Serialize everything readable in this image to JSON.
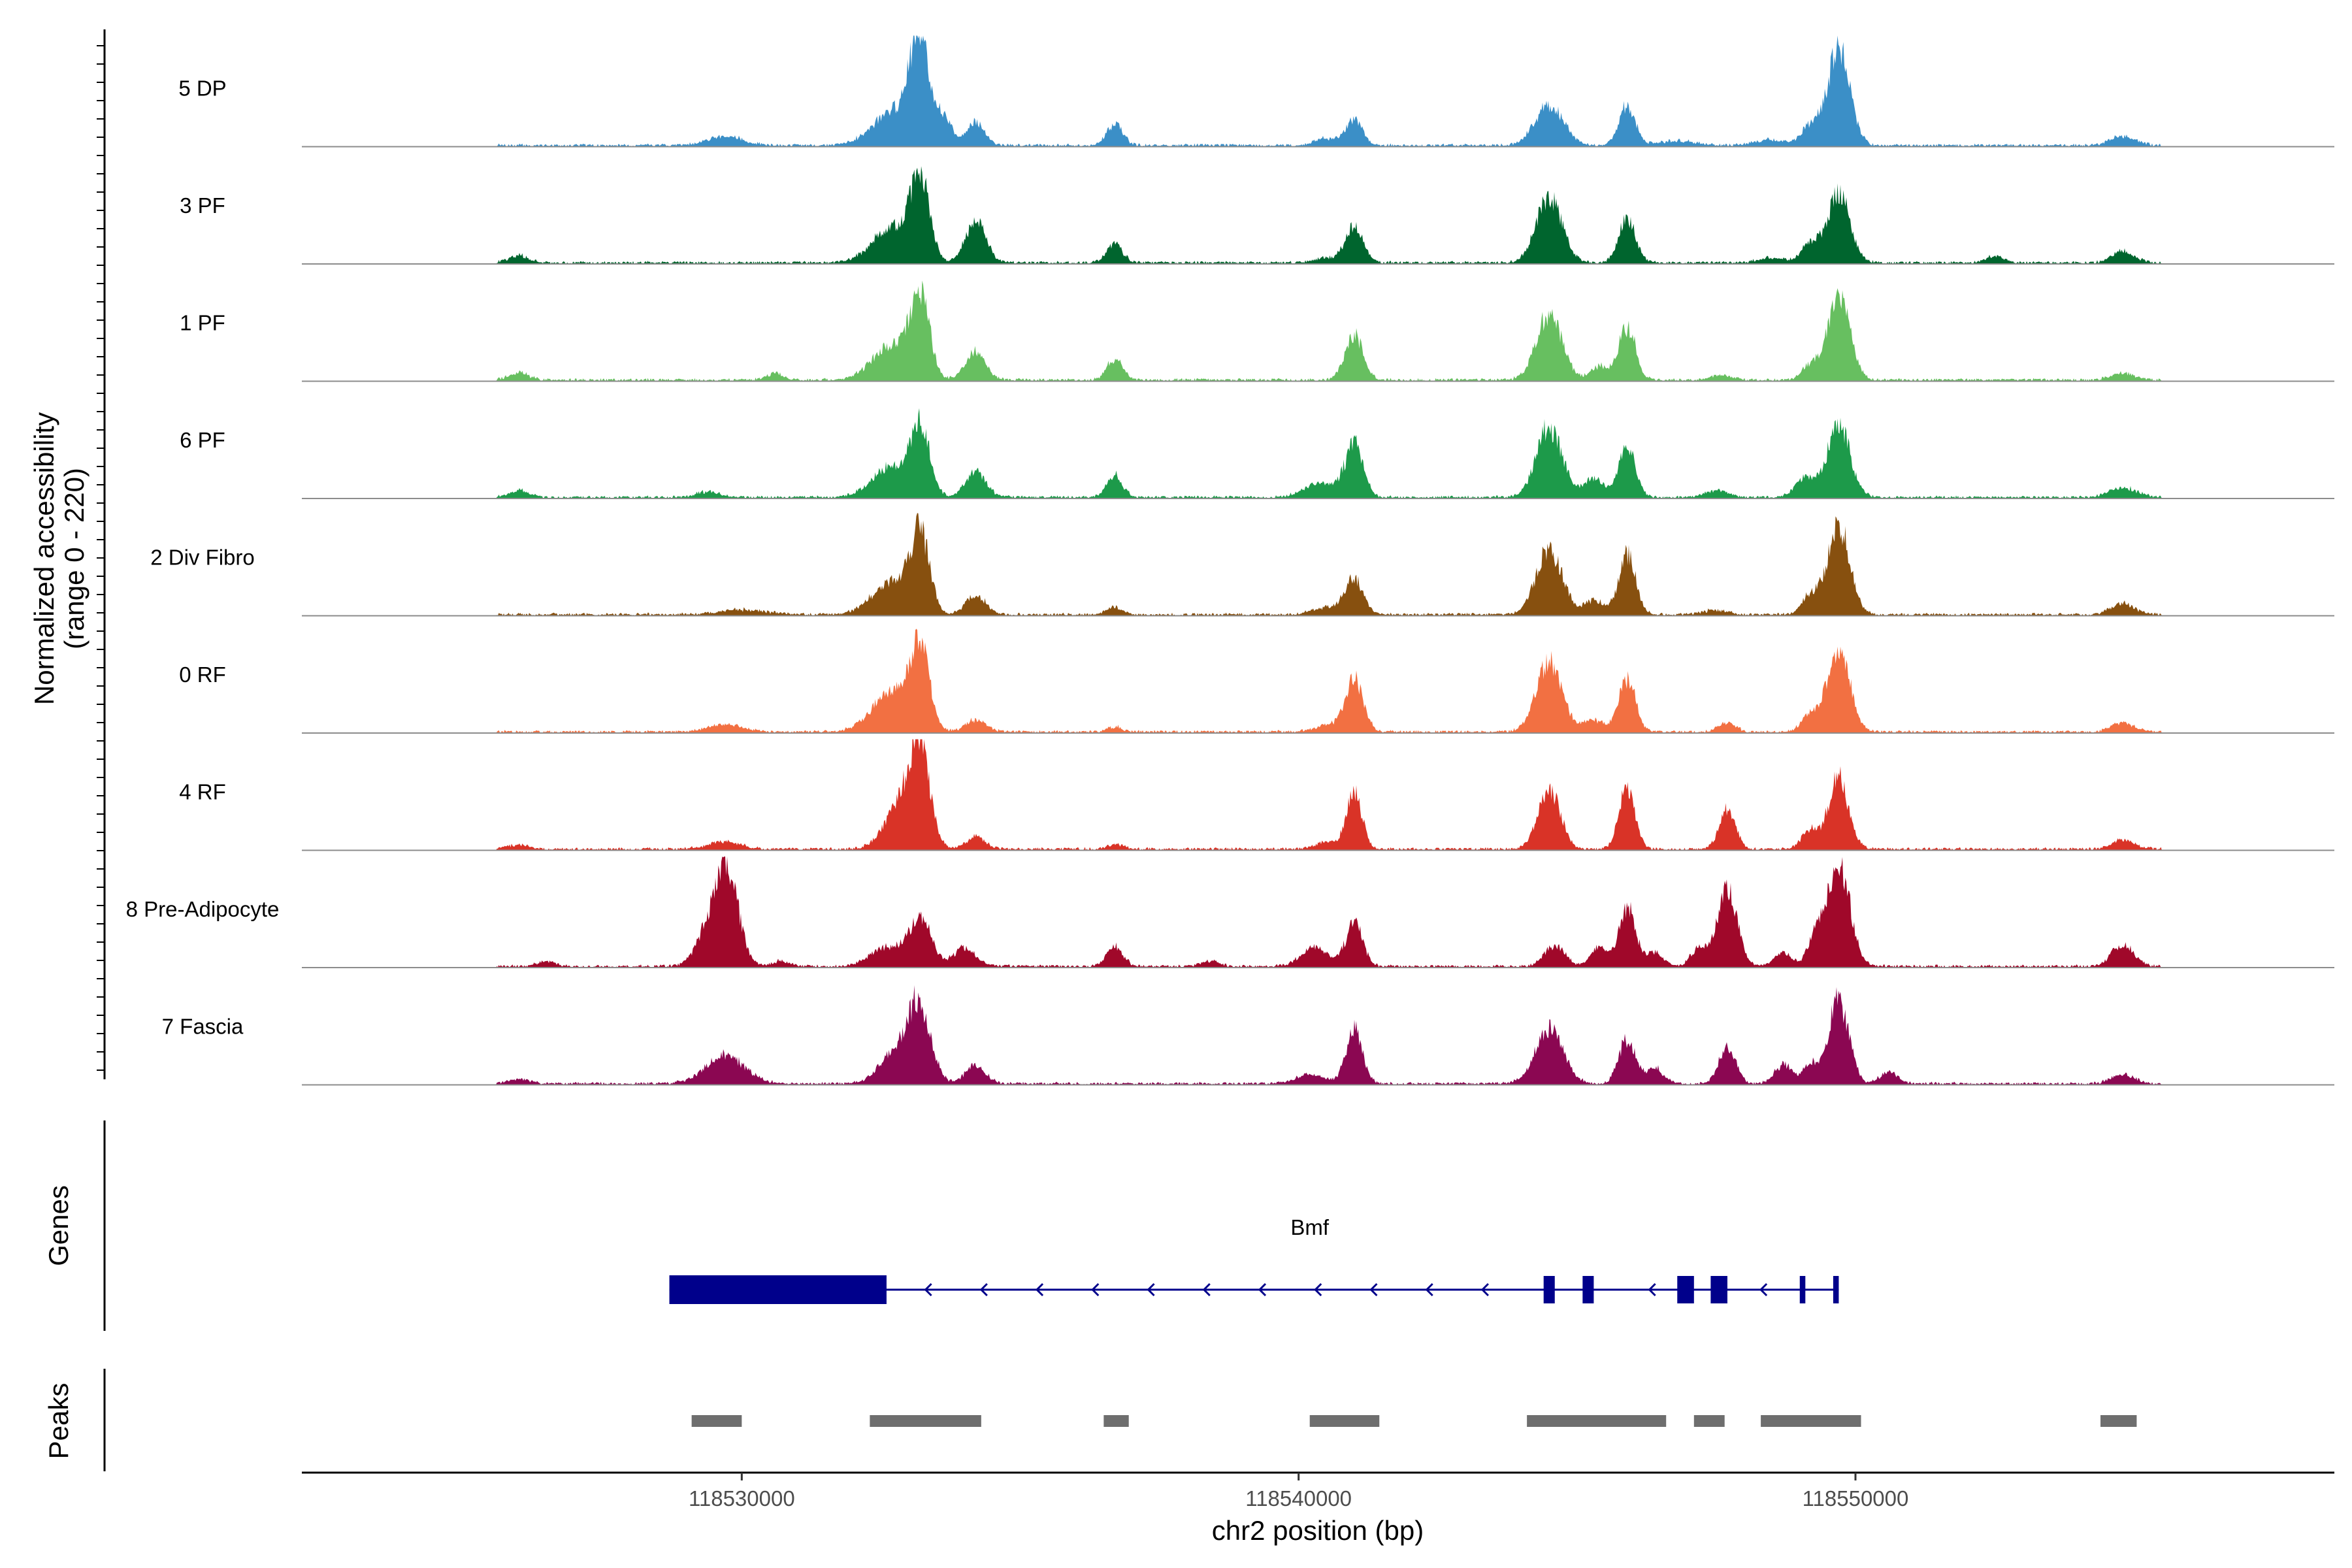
{
  "chart_data": {
    "type": "area",
    "title": "",
    "ylabel_line1": "Normalized accessibility",
    "ylabel_line2": "(range 0 - 220)",
    "ylim": [
      0,
      220
    ],
    "xlabel": "chr2 position (bp)",
    "xlim": [
      118522100,
      118558600
    ],
    "x_ticks": [
      118530000,
      118540000,
      118550000
    ],
    "x_tick_labels": [
      "118530000",
      "118540000",
      "118550000"
    ],
    "gene_panel_label": "Genes",
    "peaks_panel_label": "Peaks",
    "tracks": [
      {
        "name": "5 DP",
        "color": "#3B8FC7",
        "peaks": [
          [
            118529700,
            20,
            320
          ],
          [
            118533180,
            210,
            150
          ],
          [
            118532800,
            80,
            400
          ],
          [
            118533600,
            60,
            150
          ],
          [
            118534200,
            50,
            160
          ],
          [
            118536700,
            45,
            140
          ],
          [
            118541000,
            55,
            150
          ],
          [
            118544500,
            85,
            260
          ],
          [
            118545900,
            85,
            150
          ],
          [
            118549700,
            210,
            200
          ],
          [
            118549200,
            40,
            160
          ],
          [
            118554800,
            20,
            220
          ],
          [
            118540500,
            15,
            200
          ],
          [
            118546800,
            10,
            300
          ],
          [
            118548500,
            12,
            300
          ]
        ]
      },
      {
        "name": "3 PF",
        "color": "#00652E",
        "peaks": [
          [
            118526000,
            15,
            180
          ],
          [
            118533200,
            170,
            170
          ],
          [
            118532700,
            75,
            350
          ],
          [
            118534200,
            90,
            180
          ],
          [
            118536700,
            40,
            140
          ],
          [
            118541000,
            75,
            160
          ],
          [
            118544500,
            140,
            230
          ],
          [
            118545900,
            95,
            150
          ],
          [
            118549700,
            150,
            200
          ],
          [
            118549200,
            40,
            160
          ],
          [
            118554800,
            25,
            200
          ],
          [
            118540500,
            10,
            200
          ],
          [
            118548500,
            10,
            250
          ],
          [
            118552500,
            15,
            150
          ]
        ]
      },
      {
        "name": "1 PF",
        "color": "#67BF60",
        "peaks": [
          [
            118526000,
            15,
            180
          ],
          [
            118530600,
            15,
            150
          ],
          [
            118533200,
            170,
            170
          ],
          [
            118532700,
            75,
            350
          ],
          [
            118534200,
            60,
            180
          ],
          [
            118536700,
            45,
            140
          ],
          [
            118541000,
            95,
            160
          ],
          [
            118544500,
            140,
            230
          ],
          [
            118545900,
            115,
            150
          ],
          [
            118545400,
            30,
            150
          ],
          [
            118549700,
            180,
            200
          ],
          [
            118549200,
            30,
            160
          ],
          [
            118554800,
            15,
            200
          ],
          [
            118547600,
            10,
            200
          ]
        ]
      },
      {
        "name": "6 PF",
        "color": "#1D9A4A",
        "peaks": [
          [
            118526000,
            15,
            180
          ],
          [
            118529400,
            12,
            200
          ],
          [
            118533200,
            140,
            170
          ],
          [
            118532700,
            65,
            350
          ],
          [
            118534200,
            55,
            180
          ],
          [
            118536700,
            45,
            140
          ],
          [
            118541000,
            110,
            160
          ],
          [
            118540400,
            30,
            300
          ],
          [
            118544500,
            150,
            230
          ],
          [
            118545900,
            110,
            150
          ],
          [
            118545300,
            40,
            180
          ],
          [
            118549700,
            160,
            200
          ],
          [
            118549100,
            40,
            180
          ],
          [
            118554800,
            20,
            250
          ],
          [
            118547500,
            15,
            200
          ]
        ]
      },
      {
        "name": "2 Div Fibro",
        "color": "#87500F",
        "peaks": [
          [
            118533200,
            160,
            170
          ],
          [
            118532700,
            70,
            350
          ],
          [
            118534200,
            40,
            180
          ],
          [
            118536700,
            15,
            140
          ],
          [
            118541000,
            75,
            160
          ],
          [
            118540500,
            15,
            250
          ],
          [
            118544500,
            140,
            230
          ],
          [
            118545900,
            130,
            150
          ],
          [
            118545300,
            30,
            180
          ],
          [
            118549700,
            190,
            200
          ],
          [
            118549200,
            40,
            160
          ],
          [
            118554800,
            25,
            200
          ],
          [
            118547500,
            10,
            200
          ],
          [
            118530000,
            10,
            400
          ]
        ]
      },
      {
        "name": "0 RF",
        "color": "#F27042",
        "peaks": [
          [
            118529700,
            15,
            300
          ],
          [
            118533200,
            170,
            170
          ],
          [
            118532700,
            90,
            350
          ],
          [
            118534200,
            25,
            180
          ],
          [
            118541000,
            115,
            160
          ],
          [
            118540500,
            15,
            200
          ],
          [
            118544500,
            150,
            230
          ],
          [
            118545900,
            115,
            150
          ],
          [
            118545300,
            25,
            180
          ],
          [
            118547700,
            20,
            150
          ],
          [
            118549700,
            180,
            200
          ],
          [
            118549200,
            35,
            160
          ],
          [
            118554800,
            20,
            200
          ],
          [
            118536700,
            10,
            140
          ]
        ]
      },
      {
        "name": "4 RF",
        "color": "#D93327",
        "peaks": [
          [
            118529700,
            15,
            300
          ],
          [
            118533200,
            190,
            170
          ],
          [
            118532900,
            100,
            300
          ],
          [
            118534200,
            25,
            180
          ],
          [
            118541000,
            120,
            140
          ],
          [
            118540500,
            15,
            200
          ],
          [
            118544500,
            125,
            200
          ],
          [
            118545900,
            135,
            140
          ],
          [
            118547700,
            90,
            140
          ],
          [
            118549700,
            150,
            180
          ],
          [
            118549200,
            40,
            160
          ],
          [
            118554800,
            20,
            200
          ],
          [
            118526000,
            10,
            180
          ],
          [
            118536700,
            10,
            140
          ]
        ]
      },
      {
        "name": "8 Pre-Adipocyte",
        "color": "#A0082A",
        "peaks": [
          [
            118529700,
            220,
            220
          ],
          [
            118529300,
            40,
            200
          ],
          [
            118533200,
            100,
            200
          ],
          [
            118532600,
            40,
            300
          ],
          [
            118534000,
            40,
            200
          ],
          [
            118536700,
            40,
            150
          ],
          [
            118541000,
            90,
            150
          ],
          [
            118540300,
            40,
            250
          ],
          [
            118544600,
            45,
            180
          ],
          [
            118545900,
            125,
            150
          ],
          [
            118545400,
            40,
            150
          ],
          [
            118546400,
            30,
            150
          ],
          [
            118547700,
            160,
            180
          ],
          [
            118547200,
            40,
            150
          ],
          [
            118548700,
            30,
            150
          ],
          [
            118549700,
            220,
            200
          ],
          [
            118549300,
            60,
            150
          ],
          [
            118554800,
            45,
            200
          ],
          [
            118525200,
            15,
            150
          ],
          [
            118526500,
            12,
            150
          ],
          [
            118530700,
            12,
            150
          ],
          [
            118538400,
            12,
            150
          ]
        ]
      },
      {
        "name": "7 Fascia",
        "color": "#8B0752",
        "peaks": [
          [
            118529700,
            60,
            350
          ],
          [
            118533200,
            150,
            200
          ],
          [
            118532800,
            70,
            300
          ],
          [
            118534200,
            40,
            180
          ],
          [
            118541000,
            115,
            150
          ],
          [
            118540200,
            20,
            250
          ],
          [
            118544500,
            115,
            250
          ],
          [
            118545900,
            95,
            150
          ],
          [
            118546400,
            35,
            150
          ],
          [
            118547700,
            80,
            150
          ],
          [
            118548700,
            40,
            150
          ],
          [
            118549700,
            180,
            180
          ],
          [
            118549200,
            40,
            160
          ],
          [
            118550600,
            25,
            150
          ],
          [
            118554800,
            20,
            200
          ],
          [
            118526000,
            10,
            180
          ]
        ]
      }
    ],
    "gene": {
      "name": "Bmf",
      "color": "#00008B",
      "start": 118528700,
      "end": 118549700,
      "strand": "-",
      "exons": [
        [
          118528700,
          118532600
        ],
        [
          118544400,
          118544600
        ],
        [
          118545100,
          118545300
        ],
        [
          118546800,
          118547100
        ],
        [
          118547400,
          118547700
        ],
        [
          118549000,
          118549100
        ],
        [
          118549600,
          118549700
        ]
      ]
    },
    "peak_regions": [
      [
        118529100,
        118530000
      ],
      [
        118532300,
        118534300
      ],
      [
        118536500,
        118536950
      ],
      [
        118540200,
        118541450
      ],
      [
        118544100,
        118546600
      ],
      [
        118547100,
        118547650
      ],
      [
        118548300,
        118550100
      ],
      [
        118554400,
        118555050
      ]
    ]
  }
}
